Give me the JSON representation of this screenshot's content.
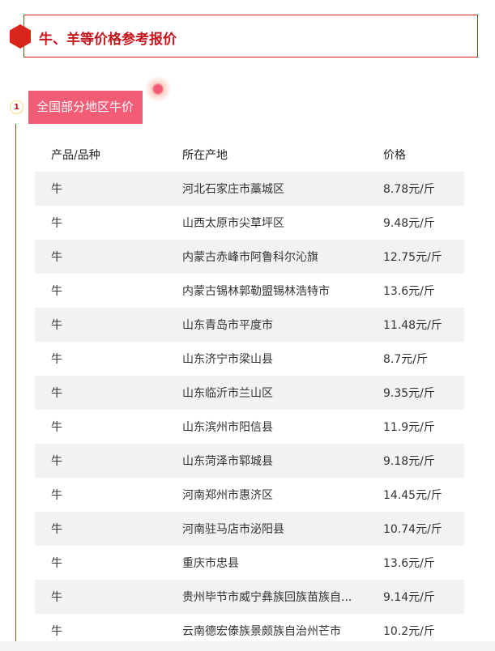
{
  "header": {
    "title": "牛、羊等价格参考报价"
  },
  "section": {
    "number": "1",
    "title": "全国部分地区牛价"
  },
  "table": {
    "columns": [
      "产品/品种",
      "所在产地",
      "价格"
    ],
    "rows": [
      [
        "牛",
        "河北石家庄市藁城区",
        "8.78元/斤"
      ],
      [
        "牛",
        "山西太原市尖草坪区",
        "9.48元/斤"
      ],
      [
        "牛",
        "内蒙古赤峰市阿鲁科尔沁旗",
        "12.75元/斤"
      ],
      [
        "牛",
        "内蒙古锡林郭勒盟锡林浩特市",
        "13.6元/斤"
      ],
      [
        "牛",
        "山东青岛市平度市",
        "11.48元/斤"
      ],
      [
        "牛",
        "山东济宁市梁山县",
        "8.7元/斤"
      ],
      [
        "牛",
        "山东临沂市兰山区",
        "9.35元/斤"
      ],
      [
        "牛",
        "山东滨州市阳信县",
        "11.9元/斤"
      ],
      [
        "牛",
        "山东菏泽市郓城县",
        "9.18元/斤"
      ],
      [
        "牛",
        "河南郑州市惠济区",
        "14.45元/斤"
      ],
      [
        "牛",
        "河南驻马店市泌阳县",
        "10.74元/斤"
      ],
      [
        "牛",
        "重庆市忠县",
        "13.6元/斤"
      ],
      [
        "牛",
        "贵州毕节市威宁彝族回族苗族自...",
        "9.14元/斤"
      ],
      [
        "牛",
        "云南德宏傣族景颇族自治州芒市",
        "10.2元/斤"
      ]
    ]
  }
}
